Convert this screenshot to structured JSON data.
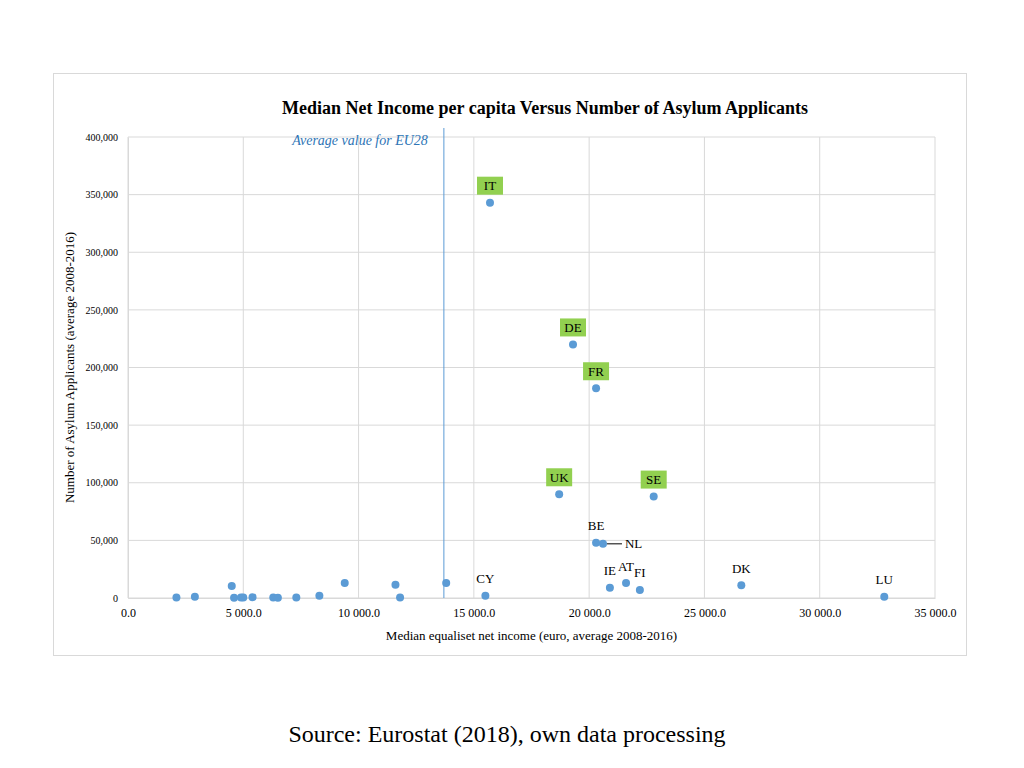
{
  "chart_data": {
    "type": "scatter",
    "title": "Median Net Income per capita Versus Number of Asylum Applicants",
    "x_label": "Median equaliset net income (euro, average 2008-2016)",
    "y_label": "Number of Asylum Applicants (average 2008-2016)",
    "source": "Source: Eurostat (2018), own data processing",
    "x": [
      2100,
      2900,
      4500,
      4600,
      4900,
      5000,
      5400,
      6300,
      6500,
      7300,
      8300,
      9400,
      11600,
      11800,
      13800,
      15500,
      15700,
      18700,
      19300,
      20300,
      20300,
      20600,
      20900,
      21600,
      22200,
      22800,
      26600,
      32800
    ],
    "values": [
      500,
      1000,
      10500,
      300,
      500,
      500,
      700,
      500,
      300,
      400,
      2000,
      13000,
      11500,
      500,
      13000,
      2000,
      343000,
      90000,
      220000,
      182000,
      48000,
      47000,
      9000,
      13000,
      7000,
      88000,
      11000,
      1000
    ],
    "labels": [
      null,
      null,
      null,
      null,
      null,
      null,
      null,
      null,
      null,
      null,
      null,
      null,
      null,
      null,
      null,
      "CY",
      "IT",
      "UK",
      "DE",
      "FR",
      "BE",
      "NL",
      "IE",
      "AT",
      "FI",
      "SE",
      "DK",
      "LU"
    ],
    "label_colors": [
      null,
      null,
      null,
      null,
      null,
      null,
      null,
      null,
      null,
      null,
      null,
      null,
      null,
      null,
      null,
      null,
      "#92d050",
      "#92d050",
      "#92d050",
      "#92d050",
      null,
      null,
      null,
      null,
      null,
      "#92d050",
      null,
      null
    ],
    "color": "#5b9bd5",
    "marker": "circle",
    "annotations": [
      {
        "text": "Average value for EU28",
        "x": 13700
      }
    ],
    "xlim": [
      0,
      35000
    ],
    "xticks": [
      {
        "value": 0,
        "label": "0.0"
      },
      {
        "value": 5000,
        "label": "5 000.0"
      },
      {
        "value": 10000,
        "label": "10 000.0"
      },
      {
        "value": 15000,
        "label": "15 000.0"
      },
      {
        "value": 20000,
        "label": "20 000.0"
      },
      {
        "value": 25000,
        "label": "25 000.0"
      },
      {
        "value": 30000,
        "label": "30 000.0"
      },
      {
        "value": 35000,
        "label": "35 000.0"
      }
    ],
    "ylim": [
      0,
      400000
    ],
    "yticks": [
      0,
      {
        "value": 50000,
        "label": "50,000"
      },
      {
        "value": 100000,
        "label": "100,000"
      },
      {
        "value": 150000,
        "label": "150,000"
      },
      {
        "value": 200000,
        "label": "200,000"
      },
      {
        "value": 250000,
        "label": "250,000"
      },
      {
        "value": 300000,
        "label": "300,000"
      },
      {
        "value": 350000,
        "label": "350,000"
      },
      {
        "value": 400000,
        "label": "400,000"
      }
    ],
    "grid": true
  }
}
